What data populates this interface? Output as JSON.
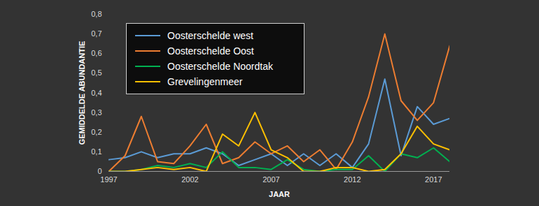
{
  "chart_data": {
    "type": "line",
    "xlabel": "JAAR",
    "ylabel": "GEMIDDELDE ABUNDANTIE",
    "x": [
      1997,
      1998,
      1999,
      2000,
      2001,
      2002,
      2003,
      2004,
      2005,
      2006,
      2007,
      2008,
      2009,
      2010,
      2011,
      2012,
      2013,
      2014,
      2015,
      2016,
      2017,
      2018
    ],
    "series": [
      {
        "name": "Oosterschelde west",
        "color": "#5b9bd5",
        "values": [
          0.06,
          0.07,
          0.1,
          0.07,
          0.09,
          0.09,
          0.12,
          0.09,
          0.03,
          0.06,
          0.09,
          0.03,
          0.09,
          0.03,
          0.09,
          0.02,
          0.14,
          0.47,
          0.08,
          0.33,
          0.24,
          0.27
        ]
      },
      {
        "name": "Oosterschelde Oost",
        "color": "#ed7d31",
        "values": [
          0.0,
          0.08,
          0.28,
          0.05,
          0.04,
          0.13,
          0.24,
          0.04,
          0.07,
          0.15,
          0.09,
          0.13,
          0.05,
          0.11,
          0.01,
          0.15,
          0.38,
          0.7,
          0.36,
          0.26,
          0.35,
          0.64
        ]
      },
      {
        "name": "Oosterschelde Noordtak",
        "color": "#00b050",
        "values": [
          0.0,
          0.0,
          0.01,
          0.03,
          0.02,
          0.04,
          0.02,
          0.1,
          0.02,
          0.02,
          0.01,
          0.06,
          0.01,
          0.0,
          0.01,
          0.01,
          0.08,
          0.0,
          0.09,
          0.07,
          0.12,
          0.05
        ]
      },
      {
        "name": "Grevelingenmeer",
        "color": "#ffc000",
        "values": [
          0.0,
          0.0,
          0.01,
          0.02,
          0.01,
          0.02,
          0.0,
          0.19,
          0.13,
          0.3,
          0.11,
          0.07,
          0.0,
          0.0,
          0.02,
          0.02,
          0.0,
          0.01,
          0.09,
          0.23,
          0.14,
          0.11
        ]
      }
    ],
    "xlim": [
      1997,
      2018
    ],
    "xticks": [
      1997,
      2002,
      2007,
      2012,
      2017
    ],
    "ylim": [
      0,
      0.8
    ],
    "yticks": [
      0,
      {
        "value": 0.1,
        "label": "0,1"
      },
      {
        "value": 0.2,
        "label": "0,2"
      },
      {
        "value": 0.3,
        "label": "0,3"
      },
      {
        "value": 0.4,
        "label": "0,4"
      },
      {
        "value": 0.5,
        "label": "0,5"
      },
      {
        "value": 0.6,
        "label": "0,6"
      },
      {
        "value": 0.7,
        "label": "0,7"
      },
      {
        "value": 0.8,
        "label": "0,8"
      }
    ],
    "grid": false,
    "legend": "top-left"
  }
}
